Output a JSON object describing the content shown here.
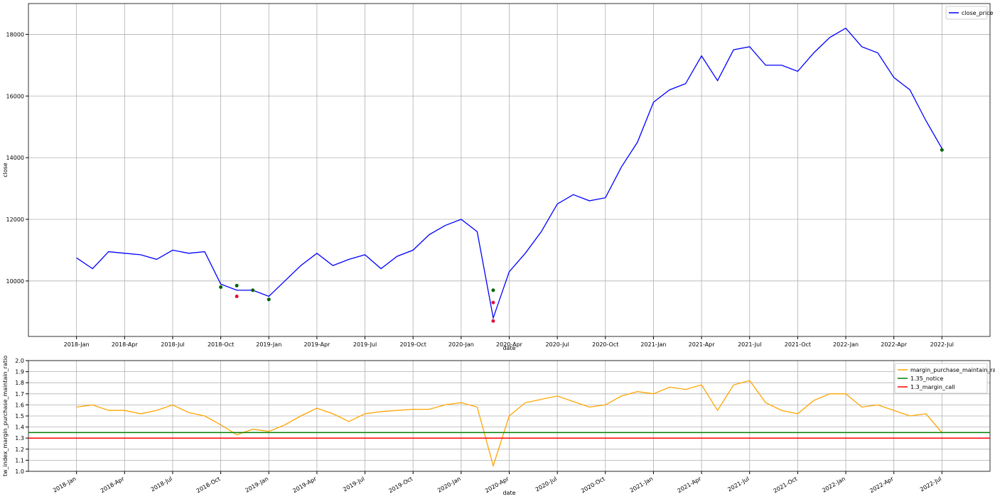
{
  "chart_data": [
    {
      "type": "line",
      "xlabel": "date",
      "ylabel": "close",
      "x": [
        "2018-01",
        "2018-02",
        "2018-03",
        "2018-04",
        "2018-05",
        "2018-06",
        "2018-07",
        "2018-08",
        "2018-09",
        "2018-10",
        "2018-11",
        "2018-12",
        "2019-01",
        "2019-02",
        "2019-03",
        "2019-04",
        "2019-05",
        "2019-06",
        "2019-07",
        "2019-08",
        "2019-09",
        "2019-10",
        "2019-11",
        "2019-12",
        "2020-01",
        "2020-02",
        "2020-03",
        "2020-04",
        "2020-05",
        "2020-06",
        "2020-07",
        "2020-08",
        "2020-09",
        "2020-10",
        "2020-11",
        "2020-12",
        "2021-01",
        "2021-02",
        "2021-03",
        "2021-04",
        "2021-05",
        "2021-06",
        "2021-07",
        "2021-08",
        "2021-09",
        "2021-10",
        "2021-11",
        "2021-12",
        "2022-01",
        "2022-02",
        "2022-03",
        "2022-04",
        "2022-05",
        "2022-06",
        "2022-07"
      ],
      "series": [
        {
          "name": "close_price",
          "color": "#0000ff",
          "values": [
            10750,
            10400,
            10950,
            10900,
            10850,
            10700,
            11000,
            10900,
            10950,
            9900,
            9700,
            9700,
            9500,
            10000,
            10500,
            10900,
            10500,
            10700,
            10850,
            10400,
            10800,
            11000,
            11500,
            11800,
            12000,
            11600,
            8800,
            10300,
            10900,
            11600,
            12500,
            12800,
            12600,
            12700,
            13700,
            14500,
            15800,
            16200,
            16400,
            17300,
            16500,
            17500,
            17600,
            17000,
            17000,
            16800,
            17400,
            17900,
            18200,
            17600,
            17400,
            16600,
            16200,
            15200,
            14300
          ]
        }
      ],
      "markers": {
        "x": [
          "2018-10",
          "2018-11",
          "2018-11",
          "2018-12",
          "2019-01",
          "2020-03",
          "2020-03",
          "2020-03",
          "2022-07"
        ],
        "values": [
          9800,
          9500,
          9850,
          9700,
          9400,
          9700,
          8700,
          9300,
          14250
        ],
        "colors": [
          "#006400",
          "#dc143c",
          "#006400",
          "#006400",
          "#006400",
          "#006400",
          "#dc143c",
          "#dc143c",
          "#006400"
        ]
      },
      "xlim": [
        "2017-10",
        "2022-10"
      ],
      "xticks": [
        {
          "value": "2018-01",
          "label": "2018-Jan"
        },
        {
          "value": "2018-04",
          "label": "2018-Apr"
        },
        {
          "value": "2018-07",
          "label": "2018-Jul"
        },
        {
          "value": "2018-10",
          "label": "2018-Oct"
        },
        {
          "value": "2019-01",
          "label": "2019-Jan"
        },
        {
          "value": "2019-04",
          "label": "2019-Apr"
        },
        {
          "value": "2019-07",
          "label": "2019-Jul"
        },
        {
          "value": "2019-10",
          "label": "2019-Oct"
        },
        {
          "value": "2020-01",
          "label": "2020-Jan"
        },
        {
          "value": "2020-04",
          "label": "2020-Apr"
        },
        {
          "value": "2020-07",
          "label": "2020-Jul"
        },
        {
          "value": "2020-10",
          "label": "2020-Oct"
        },
        {
          "value": "2021-01",
          "label": "2021-Jan"
        },
        {
          "value": "2021-04",
          "label": "2021-Apr"
        },
        {
          "value": "2021-07",
          "label": "2021-Jul"
        },
        {
          "value": "2021-10",
          "label": "2021-Oct"
        },
        {
          "value": "2022-01",
          "label": "2022-Jan"
        },
        {
          "value": "2022-04",
          "label": "2022-Apr"
        },
        {
          "value": "2022-07",
          "label": "2022-Jul"
        }
      ],
      "ylim": [
        8200,
        19000
      ],
      "yticks": [
        10000,
        12000,
        14000,
        16000,
        18000
      ],
      "grid": true,
      "legend": "upper right"
    },
    {
      "type": "line",
      "xlabel": "date",
      "ylabel": "tw_index_margin_purchase_maintain_ratio",
      "x": [
        "2018-01",
        "2018-02",
        "2018-03",
        "2018-04",
        "2018-05",
        "2018-06",
        "2018-07",
        "2018-08",
        "2018-09",
        "2018-10",
        "2018-11",
        "2018-12",
        "2019-01",
        "2019-02",
        "2019-03",
        "2019-04",
        "2019-05",
        "2019-06",
        "2019-07",
        "2019-08",
        "2019-09",
        "2019-10",
        "2019-11",
        "2019-12",
        "2020-01",
        "2020-02",
        "2020-03",
        "2020-04",
        "2020-05",
        "2020-06",
        "2020-07",
        "2020-08",
        "2020-09",
        "2020-10",
        "2020-11",
        "2020-12",
        "2021-01",
        "2021-02",
        "2021-03",
        "2021-04",
        "2021-05",
        "2021-06",
        "2021-07",
        "2021-08",
        "2021-09",
        "2021-10",
        "2021-11",
        "2021-12",
        "2022-01",
        "2022-02",
        "2022-03",
        "2022-04",
        "2022-05",
        "2022-06",
        "2022-07"
      ],
      "series": [
        {
          "name": "margin_purchase_maintain_ratio",
          "color": "#ffa500",
          "values": [
            1.58,
            1.6,
            1.55,
            1.55,
            1.52,
            1.55,
            1.6,
            1.53,
            1.5,
            1.42,
            1.33,
            1.38,
            1.36,
            1.42,
            1.5,
            1.57,
            1.52,
            1.45,
            1.52,
            1.54,
            1.55,
            1.56,
            1.56,
            1.6,
            1.62,
            1.58,
            1.05,
            1.5,
            1.62,
            1.65,
            1.68,
            1.63,
            1.58,
            1.6,
            1.68,
            1.72,
            1.7,
            1.76,
            1.74,
            1.78,
            1.55,
            1.78,
            1.82,
            1.62,
            1.55,
            1.52,
            1.64,
            1.7,
            1.7,
            1.58,
            1.6,
            1.55,
            1.5,
            1.52,
            1.35
          ]
        }
      ],
      "hlines": [
        {
          "name": "1.35_notice",
          "value": 1.35,
          "color": "#008000"
        },
        {
          "name": "1.3_margin_call",
          "value": 1.3,
          "color": "#ff0000"
        }
      ],
      "xlim": [
        "2017-10",
        "2022-10"
      ],
      "xticks": [
        {
          "value": "2018-01",
          "label": "2018-Jan"
        },
        {
          "value": "2018-04",
          "label": "2018-Apr"
        },
        {
          "value": "2018-07",
          "label": "2018-Jul"
        },
        {
          "value": "2018-10",
          "label": "2018-Oct"
        },
        {
          "value": "2019-01",
          "label": "2019-Jan"
        },
        {
          "value": "2019-04",
          "label": "2019-Apr"
        },
        {
          "value": "2019-07",
          "label": "2019-Jul"
        },
        {
          "value": "2019-10",
          "label": "2019-Oct"
        },
        {
          "value": "2020-01",
          "label": "2020-Jan"
        },
        {
          "value": "2020-04",
          "label": "2020-Apr"
        },
        {
          "value": "2020-07",
          "label": "2020-Jul"
        },
        {
          "value": "2020-10",
          "label": "2020-Oct"
        },
        {
          "value": "2021-01",
          "label": "2021-Jan"
        },
        {
          "value": "2021-04",
          "label": "2021-Apr"
        },
        {
          "value": "2021-07",
          "label": "2021-Jul"
        },
        {
          "value": "2021-10",
          "label": "2021-Oct"
        },
        {
          "value": "2022-01",
          "label": "2022-Jan"
        },
        {
          "value": "2022-04",
          "label": "2022-Apr"
        },
        {
          "value": "2022-07",
          "label": "2022-Jul"
        }
      ],
      "ylim": [
        1.0,
        2.0
      ],
      "yticks": [
        {
          "value": 1.0,
          "label": "1.0"
        },
        1.1,
        1.2,
        1.3,
        1.4,
        1.5,
        1.6,
        1.7,
        1.8,
        1.9,
        {
          "value": 2.0,
          "label": "2.0"
        }
      ],
      "grid": true,
      "legend": "upper right"
    }
  ]
}
